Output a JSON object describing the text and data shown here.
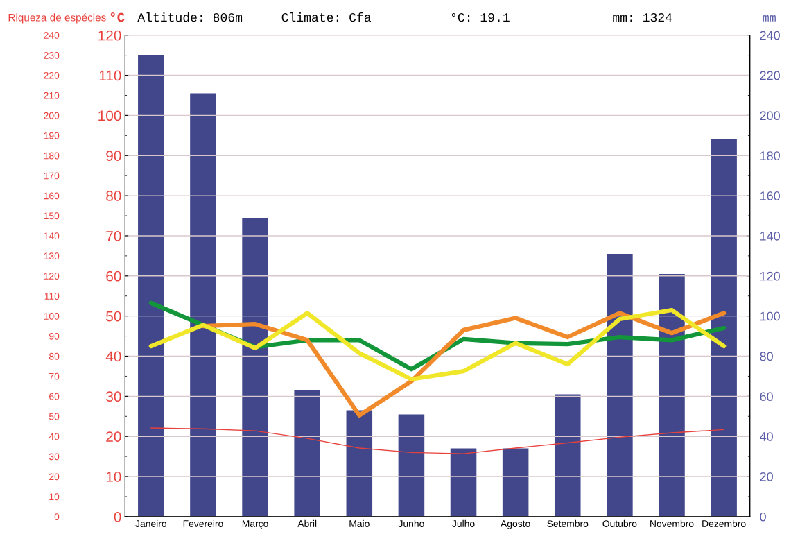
{
  "chart_data": {
    "type": "bar",
    "categories": [
      "Janeiro",
      "Fevereiro",
      "Março",
      "Abril",
      "Maio",
      "Junho",
      "Julho",
      "Agosto",
      "Setembro",
      "Outubro",
      "Novembro",
      "Dezembro"
    ],
    "series": [
      {
        "axis": "y2",
        "color": "#41478a",
        "values": [
          230,
          211,
          149,
          63,
          53,
          51,
          34,
          34,
          61,
          131,
          121,
          188
        ]
      },
      {
        "type": "line",
        "axis": "y",
        "color": "#e8413c",
        "values": [
          22.1,
          21.9,
          21.4,
          19.5,
          17.1,
          16.0,
          15.7,
          17.1,
          18.4,
          19.8,
          20.9,
          21.7
        ]
      },
      {
        "type": "line",
        "axis": "y3",
        "color": "#13963a",
        "values": [
          106.5,
          95.5,
          84.5,
          88,
          88,
          73.5,
          88.5,
          86.5,
          86,
          89.5,
          88,
          94
        ]
      },
      {
        "type": "line",
        "axis": "y3",
        "color": "#f08a2a",
        "values": [
          null,
          95,
          96,
          88,
          50.5,
          67.5,
          93,
          99,
          89.5,
          101.5,
          91.5,
          101.5
        ]
      },
      {
        "type": "line",
        "axis": "y3",
        "color": "#f0e62a",
        "values": [
          85,
          95.5,
          84,
          101.5,
          81.5,
          68.5,
          72.5,
          86.5,
          76,
          98.5,
          103,
          85
        ]
      }
    ],
    "ylabel": "°C",
    "y2label": "mm",
    "y3label": "Riqueza de espécies",
    "ylim": [
      0,
      120
    ],
    "yticks": [
      0,
      {
        "value": 5,
        "label": null
      },
      10,
      {
        "value": 15,
        "label": null
      },
      20,
      {
        "value": 25,
        "label": null
      },
      30,
      {
        "value": 35,
        "label": null
      },
      40,
      {
        "value": 45,
        "label": null
      },
      50,
      {
        "value": 55,
        "label": null
      },
      60,
      {
        "value": 65,
        "label": null
      },
      70,
      {
        "value": 75,
        "label": null
      },
      80,
      {
        "value": 85,
        "label": null
      },
      90,
      {
        "value": 95,
        "label": null
      },
      100,
      {
        "value": 105,
        "label": null
      },
      110,
      {
        "value": 115,
        "label": null
      },
      120
    ],
    "y2lim": [
      0,
      240
    ],
    "y2ticks": [
      0,
      {
        "value": 10,
        "label": null
      },
      20,
      {
        "value": 30,
        "label": null
      },
      40,
      {
        "value": 50,
        "label": null
      },
      60,
      {
        "value": 70,
        "label": null
      },
      80,
      {
        "value": 90,
        "label": null
      },
      100,
      {
        "value": 110,
        "label": null
      },
      120,
      {
        "value": 130,
        "label": null
      },
      140,
      {
        "value": 150,
        "label": null
      },
      160,
      {
        "value": 170,
        "label": null
      },
      180,
      {
        "value": 190,
        "label": null
      },
      200,
      {
        "value": 210,
        "label": null
      },
      220,
      {
        "value": 230,
        "label": null
      },
      240
    ],
    "y3lim": [
      0,
      240
    ],
    "y3ticks": [
      0,
      10,
      20,
      30,
      40,
      50,
      60,
      70,
      80,
      90,
      100,
      110,
      120,
      130,
      140,
      150,
      160,
      170,
      180,
      190,
      200,
      210,
      220,
      230,
      240
    ],
    "grid": "y",
    "annotations": [
      "Altitude: 806m",
      "Climate: Cfa",
      "°C: 19.1",
      "mm: 1324"
    ]
  }
}
